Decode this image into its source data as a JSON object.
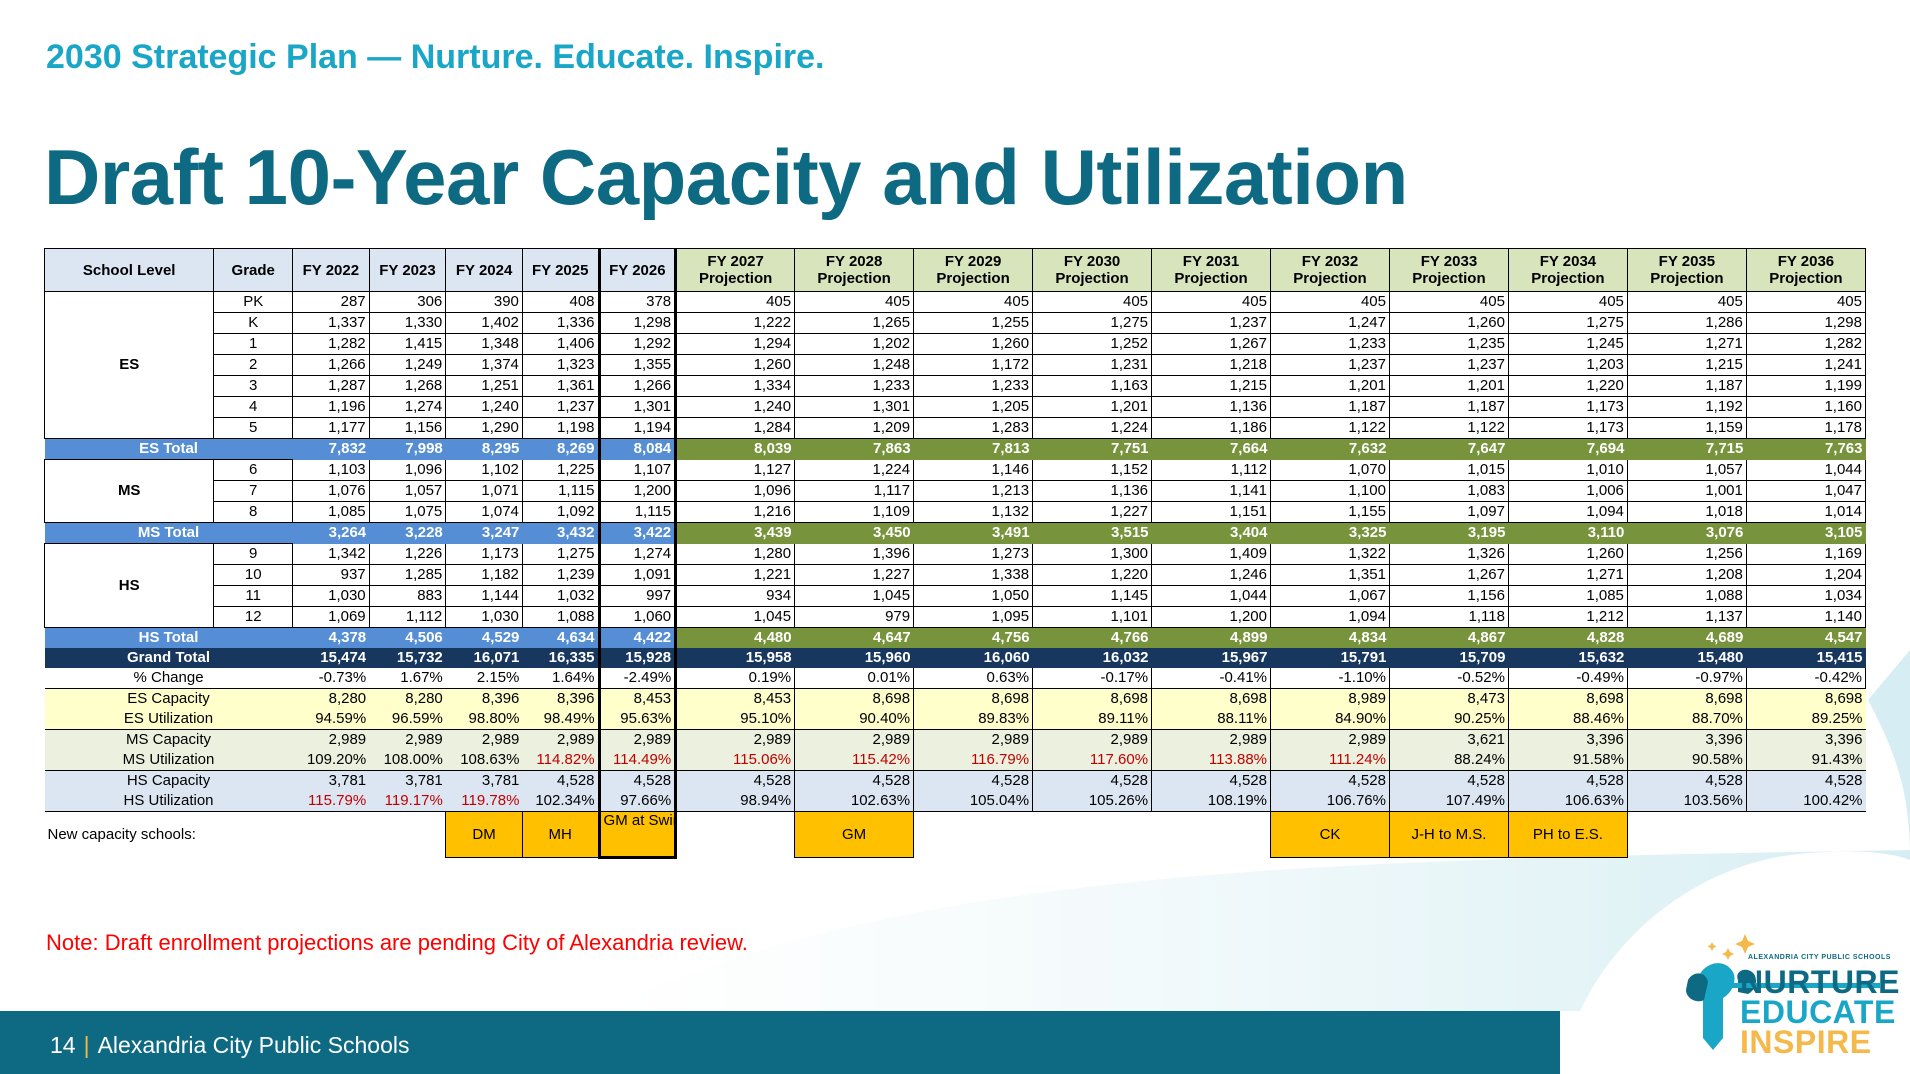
{
  "header": {
    "tagline": "2030 Strategic Plan — Nurture. Educate. Inspire.",
    "title": "Draft 10-Year Capacity and Utilization"
  },
  "table": {
    "col_school_level": "School Level",
    "col_grade": "Grade",
    "hist_years": [
      "FY 2022",
      "FY 2023",
      "FY 2024",
      "FY 2025",
      "FY 2026"
    ],
    "proj_years": [
      "FY 2027",
      "FY 2028",
      "FY 2029",
      "FY 2030",
      "FY 2031",
      "FY 2032",
      "FY 2033",
      "FY 2034",
      "FY 2035",
      "FY 2036"
    ],
    "proj_suffix": "Projection",
    "levels": [
      {
        "name": "ES",
        "grades": [
          {
            "grade": "PK",
            "values": [
              "287",
              "306",
              "390",
              "408",
              "378",
              "405",
              "405",
              "405",
              "405",
              "405",
              "405",
              "405",
              "405",
              "405",
              "405"
            ]
          },
          {
            "grade": "K",
            "values": [
              "1,337",
              "1,330",
              "1,402",
              "1,336",
              "1,298",
              "1,222",
              "1,265",
              "1,255",
              "1,275",
              "1,237",
              "1,247",
              "1,260",
              "1,275",
              "1,286",
              "1,298"
            ]
          },
          {
            "grade": "1",
            "values": [
              "1,282",
              "1,415",
              "1,348",
              "1,406",
              "1,292",
              "1,294",
              "1,202",
              "1,260",
              "1,252",
              "1,267",
              "1,233",
              "1,235",
              "1,245",
              "1,271",
              "1,282"
            ]
          },
          {
            "grade": "2",
            "values": [
              "1,266",
              "1,249",
              "1,374",
              "1,323",
              "1,355",
              "1,260",
              "1,248",
              "1,172",
              "1,231",
              "1,218",
              "1,237",
              "1,237",
              "1,203",
              "1,215",
              "1,241"
            ]
          },
          {
            "grade": "3",
            "values": [
              "1,287",
              "1,268",
              "1,251",
              "1,361",
              "1,266",
              "1,334",
              "1,233",
              "1,233",
              "1,163",
              "1,215",
              "1,201",
              "1,201",
              "1,220",
              "1,187",
              "1,199"
            ]
          },
          {
            "grade": "4",
            "values": [
              "1,196",
              "1,274",
              "1,240",
              "1,237",
              "1,301",
              "1,240",
              "1,301",
              "1,205",
              "1,201",
              "1,136",
              "1,187",
              "1,187",
              "1,173",
              "1,192",
              "1,160"
            ]
          },
          {
            "grade": "5",
            "values": [
              "1,177",
              "1,156",
              "1,290",
              "1,198",
              "1,194",
              "1,284",
              "1,209",
              "1,283",
              "1,224",
              "1,186",
              "1,122",
              "1,122",
              "1,173",
              "1,159",
              "1,178"
            ]
          }
        ],
        "total_label": "ES Total",
        "total": [
          "7,832",
          "7,998",
          "8,295",
          "8,269",
          "8,084",
          "8,039",
          "7,863",
          "7,813",
          "7,751",
          "7,664",
          "7,632",
          "7,647",
          "7,694",
          "7,715",
          "7,763"
        ]
      },
      {
        "name": "MS",
        "grades": [
          {
            "grade": "6",
            "values": [
              "1,103",
              "1,096",
              "1,102",
              "1,225",
              "1,107",
              "1,127",
              "1,224",
              "1,146",
              "1,152",
              "1,112",
              "1,070",
              "1,015",
              "1,010",
              "1,057",
              "1,044"
            ]
          },
          {
            "grade": "7",
            "values": [
              "1,076",
              "1,057",
              "1,071",
              "1,115",
              "1,200",
              "1,096",
              "1,117",
              "1,213",
              "1,136",
              "1,141",
              "1,100",
              "1,083",
              "1,006",
              "1,001",
              "1,047"
            ]
          },
          {
            "grade": "8",
            "values": [
              "1,085",
              "1,075",
              "1,074",
              "1,092",
              "1,115",
              "1,216",
              "1,109",
              "1,132",
              "1,227",
              "1,151",
              "1,155",
              "1,097",
              "1,094",
              "1,018",
              "1,014"
            ]
          }
        ],
        "total_label": "MS Total",
        "total": [
          "3,264",
          "3,228",
          "3,247",
          "3,432",
          "3,422",
          "3,439",
          "3,450",
          "3,491",
          "3,515",
          "3,404",
          "3,325",
          "3,195",
          "3,110",
          "3,076",
          "3,105"
        ]
      },
      {
        "name": "HS",
        "grades": [
          {
            "grade": "9",
            "values": [
              "1,342",
              "1,226",
              "1,173",
              "1,275",
              "1,274",
              "1,280",
              "1,396",
              "1,273",
              "1,300",
              "1,409",
              "1,322",
              "1,326",
              "1,260",
              "1,256",
              "1,169"
            ]
          },
          {
            "grade": "10",
            "values": [
              "937",
              "1,285",
              "1,182",
              "1,239",
              "1,091",
              "1,221",
              "1,227",
              "1,338",
              "1,220",
              "1,246",
              "1,351",
              "1,267",
              "1,271",
              "1,208",
              "1,204"
            ]
          },
          {
            "grade": "11",
            "values": [
              "1,030",
              "883",
              "1,144",
              "1,032",
              "997",
              "934",
              "1,045",
              "1,050",
              "1,145",
              "1,044",
              "1,067",
              "1,156",
              "1,085",
              "1,088",
              "1,034"
            ]
          },
          {
            "grade": "12",
            "values": [
              "1,069",
              "1,112",
              "1,030",
              "1,088",
              "1,060",
              "1,045",
              "979",
              "1,095",
              "1,101",
              "1,200",
              "1,094",
              "1,118",
              "1,212",
              "1,137",
              "1,140"
            ]
          }
        ],
        "total_label": "HS Total",
        "total": [
          "4,378",
          "4,506",
          "4,529",
          "4,634",
          "4,422",
          "4,480",
          "4,647",
          "4,756",
          "4,766",
          "4,899",
          "4,834",
          "4,867",
          "4,828",
          "4,689",
          "4,547"
        ]
      }
    ],
    "grand_total": {
      "label": "Grand Total",
      "values": [
        "15,474",
        "15,732",
        "16,071",
        "16,335",
        "15,928",
        "15,958",
        "15,960",
        "16,060",
        "16,032",
        "15,967",
        "15,791",
        "15,709",
        "15,632",
        "15,480",
        "15,415"
      ]
    },
    "pct_change": {
      "label": "% Change",
      "values": [
        "-0.73%",
        "1.67%",
        "2.15%",
        "1.64%",
        "-2.49%",
        "0.19%",
        "0.01%",
        "0.63%",
        "-0.17%",
        "-0.41%",
        "-1.10%",
        "-0.52%",
        "-0.49%",
        "-0.97%",
        "-0.42%"
      ]
    },
    "capacity_groups": [
      {
        "cap_label": "ES Capacity",
        "cap": [
          "8,280",
          "8,280",
          "8,396",
          "8,396",
          "8,453",
          "8,453",
          "8,698",
          "8,698",
          "8,698",
          "8,698",
          "8,989",
          "8,473",
          "8,698",
          "8,698",
          "8,698"
        ],
        "util_label": "ES Utilization",
        "util": [
          "94.59%",
          "96.59%",
          "98.80%",
          "98.49%",
          "95.63%",
          "95.10%",
          "90.40%",
          "89.83%",
          "89.11%",
          "88.11%",
          "84.90%",
          "90.25%",
          "88.46%",
          "88.70%",
          "89.25%"
        ],
        "util_over": [
          false,
          false,
          false,
          false,
          false,
          false,
          false,
          false,
          false,
          false,
          false,
          false,
          false,
          false,
          false
        ]
      },
      {
        "cap_label": "MS Capacity",
        "cap": [
          "2,989",
          "2,989",
          "2,989",
          "2,989",
          "2,989",
          "2,989",
          "2,989",
          "2,989",
          "2,989",
          "2,989",
          "2,989",
          "3,621",
          "3,396",
          "3,396",
          "3,396"
        ],
        "util_label": "MS Utilization",
        "util": [
          "109.20%",
          "108.00%",
          "108.63%",
          "114.82%",
          "114.49%",
          "115.06%",
          "115.42%",
          "116.79%",
          "117.60%",
          "113.88%",
          "111.24%",
          "88.24%",
          "91.58%",
          "90.58%",
          "91.43%"
        ],
        "util_over": [
          false,
          false,
          false,
          true,
          true,
          true,
          true,
          true,
          true,
          true,
          true,
          false,
          false,
          false,
          false
        ]
      },
      {
        "cap_label": "HS Capacity",
        "cap": [
          "3,781",
          "3,781",
          "3,781",
          "4,528",
          "4,528",
          "4,528",
          "4,528",
          "4,528",
          "4,528",
          "4,528",
          "4,528",
          "4,528",
          "4,528",
          "4,528",
          "4,528"
        ],
        "util_label": "HS Utilization",
        "util": [
          "115.79%",
          "119.17%",
          "119.78%",
          "102.34%",
          "97.66%",
          "98.94%",
          "102.63%",
          "105.04%",
          "105.26%",
          "108.19%",
          "106.76%",
          "107.49%",
          "106.63%",
          "103.56%",
          "100.42%"
        ],
        "util_over": [
          true,
          true,
          true,
          false,
          false,
          false,
          false,
          false,
          false,
          false,
          false,
          false,
          false,
          false,
          false
        ]
      }
    ],
    "new_capacity": {
      "label": "New capacity schools:",
      "tags": [
        "",
        "",
        "DM",
        "MH",
        "GM at Swing Sp.",
        "",
        "GM",
        "",
        "",
        "",
        "CK",
        "J-H to M.S.",
        "PH to E.S.",
        "",
        ""
      ]
    }
  },
  "note": "Note: Draft enrollment projections are pending City of Alexandria review.",
  "footer": {
    "page": "14",
    "separator": "|",
    "org": "Alexandria City Public Schools"
  },
  "logo": {
    "caption": "ALEXANDRIA CITY PUBLIC SCHOOLS",
    "line1": "NURTURE",
    "line2": "EDUCATE",
    "line3": "INSPIRE"
  },
  "colors": {
    "teal": "#0e6a82",
    "cyan": "#1aa6c6",
    "over_capacity": "#c00000",
    "total_hist": "#558ed5",
    "total_proj": "#77933c",
    "grand_total": "#17375e",
    "tag": "#ffc000"
  }
}
